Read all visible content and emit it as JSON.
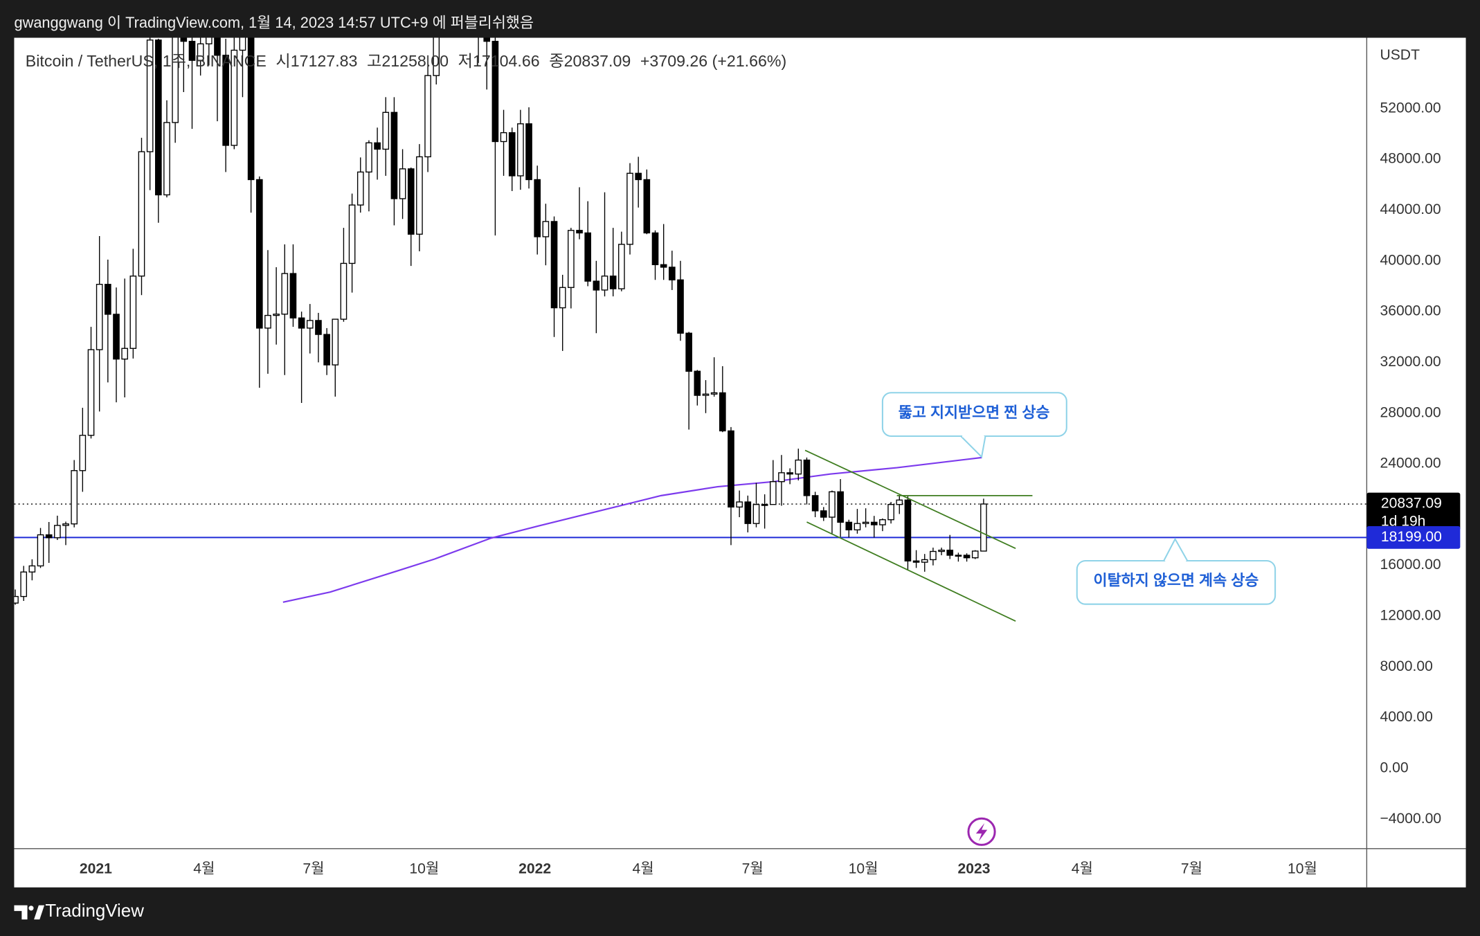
{
  "header": {
    "text": "gwanggwang 이 TradingView.com, 1월 14, 2023 14:57 UTC+9 에 퍼블리쉬했음"
  },
  "footer": {
    "brand": "TradingView"
  },
  "chart_data": {
    "type": "candlestick",
    "legend": {
      "symbol": "Bitcoin / TetherUS, 1주, BINANCE",
      "fields": [
        {
          "label": "시",
          "value": "17127.83"
        },
        {
          "label": "고",
          "value": "21258.00"
        },
        {
          "label": "저",
          "value": "17104.66"
        },
        {
          "label": "종",
          "value": "20837.09"
        }
      ],
      "change": "+3709.26 (+21.66%)"
    },
    "y_unit": "USDT",
    "xlim": [
      -0.13,
      160.5
    ],
    "xticks": [
      {
        "value": 9.57,
        "label": "2021"
      },
      {
        "value": 22.43,
        "label": "4월"
      },
      {
        "value": 35.43,
        "label": "7월"
      },
      {
        "value": 48.57,
        "label": "10월"
      },
      {
        "value": 61.71,
        "label": "2022"
      },
      {
        "value": 74.57,
        "label": "4월"
      },
      {
        "value": 87.57,
        "label": "7월"
      },
      {
        "value": 100.71,
        "label": "10월"
      },
      {
        "value": 113.86,
        "label": "2023"
      },
      {
        "value": 126.71,
        "label": "4월"
      },
      {
        "value": 139.71,
        "label": "7월"
      },
      {
        "value": 152.86,
        "label": "10월"
      }
    ],
    "ylim": [
      -6250,
      57580
    ],
    "yticks": [
      {
        "value": -4000,
        "label": "−4000.00"
      },
      {
        "value": 0,
        "label": "0.00"
      },
      {
        "value": 4000,
        "label": "4000.00"
      },
      {
        "value": 8000,
        "label": "8000.00"
      },
      {
        "value": 12000,
        "label": "12000.00"
      },
      {
        "value": 16000,
        "label": "16000.00"
      },
      {
        "value": 20000,
        "label": "20000.00"
      },
      {
        "value": 24000,
        "label": "24000.00"
      },
      {
        "value": 28000,
        "label": "28000.00"
      },
      {
        "value": 32000,
        "label": "32000.00"
      },
      {
        "value": 36000,
        "label": "36000.00"
      },
      {
        "value": 40000,
        "label": "40000.00"
      },
      {
        "value": 44000,
        "label": "44000.00"
      },
      {
        "value": 48000,
        "label": "48000.00"
      },
      {
        "value": 52000,
        "label": "52000.00"
      }
    ],
    "grid": false,
    "up_color": "#ffffff",
    "down_color": "#000000",
    "wick_color": "#000000",
    "x": [
      0,
      1,
      2,
      3,
      4,
      5,
      6,
      7,
      8,
      9,
      10,
      11,
      12,
      13,
      14,
      15,
      16,
      17,
      18,
      19,
      20,
      21,
      22,
      23,
      24,
      25,
      26,
      27,
      28,
      29,
      30,
      31,
      32,
      33,
      34,
      35,
      36,
      37,
      38,
      39,
      40,
      41,
      42,
      43,
      44,
      45,
      46,
      47,
      48,
      49,
      50,
      51,
      52,
      53,
      54,
      55,
      56,
      57,
      58,
      59,
      60,
      61,
      62,
      63,
      64,
      65,
      66,
      67,
      68,
      69,
      70,
      71,
      72,
      73,
      74,
      75,
      76,
      77,
      78,
      79,
      80,
      81,
      82,
      83,
      84,
      85,
      86,
      87,
      88,
      89,
      90,
      91,
      92,
      93,
      94,
      95,
      96,
      97,
      98,
      99,
      100,
      101,
      102,
      103,
      104,
      105,
      106,
      107,
      108,
      109,
      110,
      111,
      112,
      113,
      114,
      115
    ],
    "open": [
      13030,
      13550,
      15480,
      15960,
      18410,
      18180,
      19150,
      19270,
      23470,
      26250,
      33000,
      38150,
      35790,
      32260,
      33100,
      38800,
      48600,
      57400,
      45200,
      50900,
      59000,
      57300,
      55800,
      57100,
      60000,
      56200,
      49100,
      56600,
      58200,
      46400,
      34700,
      35700,
      35800,
      39000,
      35500,
      34700,
      35300,
      34200,
      31800,
      35400,
      39800,
      44400,
      47000,
      49300,
      48800,
      51700,
      44900,
      47250,
      42100,
      48200,
      54600,
      61500,
      60900,
      61300,
      63300,
      65500,
      58600,
      57300,
      49400,
      50100,
      46700,
      50800,
      46400,
      41900,
      43100,
      36300,
      37900,
      42400,
      42200,
      38400,
      37700,
      38800,
      37800,
      41300,
      46900,
      46400,
      42200,
      39700,
      39500,
      38500,
      34300,
      31300,
      29400,
      29500,
      29600,
      26600,
      20600,
      21000,
      19300,
      20800,
      20800,
      22600,
      23300,
      23200,
      24300,
      21500,
      20300,
      19800,
      21800,
      19400,
      18800,
      19300,
      19400,
      19200,
      19600,
      20800,
      21150,
      16350,
      16250,
      16450,
      17100,
      17200,
      16800,
      16800,
      16600,
      17127.83
    ],
    "high": [
      14100,
      15960,
      16480,
      18950,
      19420,
      19920,
      19450,
      24300,
      28420,
      34800,
      41950,
      40100,
      37900,
      38600,
      40950,
      49700,
      58350,
      57500,
      52650,
      61840,
      60600,
      58400,
      60000,
      61300,
      64850,
      57500,
      58400,
      59500,
      59600,
      46650,
      40850,
      39500,
      41300,
      41300,
      36000,
      36600,
      35900,
      34700,
      35400,
      42600,
      45300,
      48150,
      49500,
      50500,
      52900,
      52900,
      48800,
      47350,
      49200,
      56200,
      62000,
      67000,
      63700,
      65600,
      69000,
      66300,
      59800,
      59400,
      51900,
      50500,
      51900,
      52100,
      47500,
      44500,
      43500,
      38900,
      42600,
      45800,
      44700,
      40000,
      45400,
      42600,
      42300,
      47700,
      48200,
      47200,
      42400,
      42900,
      40800,
      40000,
      34400,
      31400,
      30600,
      32400,
      31700,
      26900,
      21900,
      21500,
      22500,
      21600,
      24300,
      24700,
      23650,
      25200,
      24500,
      21800,
      20600,
      21900,
      22800,
      19600,
      20450,
      20500,
      19900,
      19700,
      21000,
      21500,
      21450,
      17200,
      16900,
      17400,
      17400,
      18400,
      17000,
      16950,
      17200,
      21258
    ],
    "low": [
      12900,
      13200,
      14820,
      15800,
      16200,
      18000,
      17600,
      19000,
      21800,
      26000,
      28130,
      30420,
      28850,
      29240,
      32300,
      37300,
      45570,
      43000,
      45000,
      49300,
      53300,
      50400,
      54600,
      55400,
      51000,
      47000,
      48800,
      52900,
      43800,
      30000,
      31100,
      33400,
      31000,
      34800,
      28800,
      32700,
      32000,
      31000,
      29300,
      35200,
      37500,
      43800,
      43900,
      46400,
      46700,
      42800,
      43300,
      39600,
      40750,
      47000,
      53900,
      59500,
      57800,
      59400,
      62300,
      55600,
      53500,
      42000,
      46700,
      45500,
      45600,
      45700,
      40500,
      39650,
      34000,
      32900,
      36250,
      41700,
      38000,
      34300,
      37200,
      37200,
      37600,
      40500,
      44200,
      42100,
      38500,
      38500,
      37700,
      33700,
      26700,
      28600,
      28000,
      29300,
      26500,
      17600,
      19800,
      18600,
      19000,
      18900,
      20800,
      20700,
      22400,
      22700,
      20800,
      19800,
      19500,
      18500,
      18250,
      18200,
      18500,
      19000,
      18200,
      18700,
      19300,
      20050,
      15600,
      15800,
      15500,
      16000,
      16800,
      16500,
      16300,
      16300,
      16500,
      17104.66
    ],
    "close": [
      13550,
      15480,
      15960,
      18410,
      18180,
      19150,
      19270,
      23470,
      26250,
      33000,
      38150,
      35790,
      32260,
      33100,
      38800,
      48600,
      57400,
      45200,
      50900,
      59000,
      57300,
      55800,
      57100,
      60000,
      56200,
      49100,
      56600,
      58200,
      46400,
      34700,
      35700,
      35800,
      39000,
      35500,
      34700,
      35300,
      34200,
      31800,
      35400,
      39800,
      44400,
      47000,
      49300,
      48800,
      51700,
      44900,
      47250,
      42100,
      48200,
      54600,
      61500,
      60900,
      61300,
      63300,
      65500,
      58600,
      57300,
      49400,
      50100,
      46700,
      50800,
      46400,
      41900,
      43100,
      36300,
      37900,
      42400,
      42200,
      38400,
      37700,
      38800,
      37800,
      41300,
      46900,
      46400,
      42200,
      39700,
      39500,
      38500,
      34300,
      31300,
      29400,
      29500,
      29600,
      26600,
      20600,
      21000,
      19300,
      20800,
      20800,
      22600,
      23300,
      23200,
      24300,
      21500,
      20300,
      19800,
      21800,
      19400,
      18800,
      19300,
      19400,
      19200,
      19600,
      20800,
      21150,
      16350,
      16250,
      16450,
      17100,
      17200,
      16800,
      16800,
      16600,
      17127.83,
      20837.09
    ],
    "overlays": [
      {
        "color": "#7c3aed",
        "x": [
          31.8,
          37.4,
          45.3,
          49.8,
          56.5,
          62.1,
          70.0,
          76.7,
          83.4,
          90.1,
          96.8,
          104.7,
          114.8
        ],
        "values": [
          13100,
          13900,
          15550,
          16500,
          18150,
          19100,
          20400,
          21500,
          22200,
          22600,
          23200,
          23700,
          24500
        ]
      }
    ],
    "drawings": [
      {
        "color": "#3f7d20",
        "x": [
          93.8,
          118.8
        ],
        "values": [
          25071,
          17334
        ]
      },
      {
        "color": "#3f7d20",
        "x": [
          94.0,
          118.8
        ],
        "values": [
          19417,
          11606
        ]
      },
      {
        "color": "#3f7d20",
        "x": [
          104.7,
          120.8
        ],
        "values": [
          21500,
          21500
        ]
      }
    ],
    "price_lines": [
      {
        "value": 20837.09,
        "label": "20837.09",
        "countdown": "1d 19h",
        "color": "#000000",
        "style": "dotted"
      },
      {
        "value": 18199,
        "label": "18199.00",
        "color": "#1f2ad8",
        "style": "solid"
      }
    ],
    "annotations": [
      {
        "text": "뚫고 지지받으면 찐 상승"
      },
      {
        "text": "이탈하지 않으면 계속 상승"
      }
    ]
  }
}
